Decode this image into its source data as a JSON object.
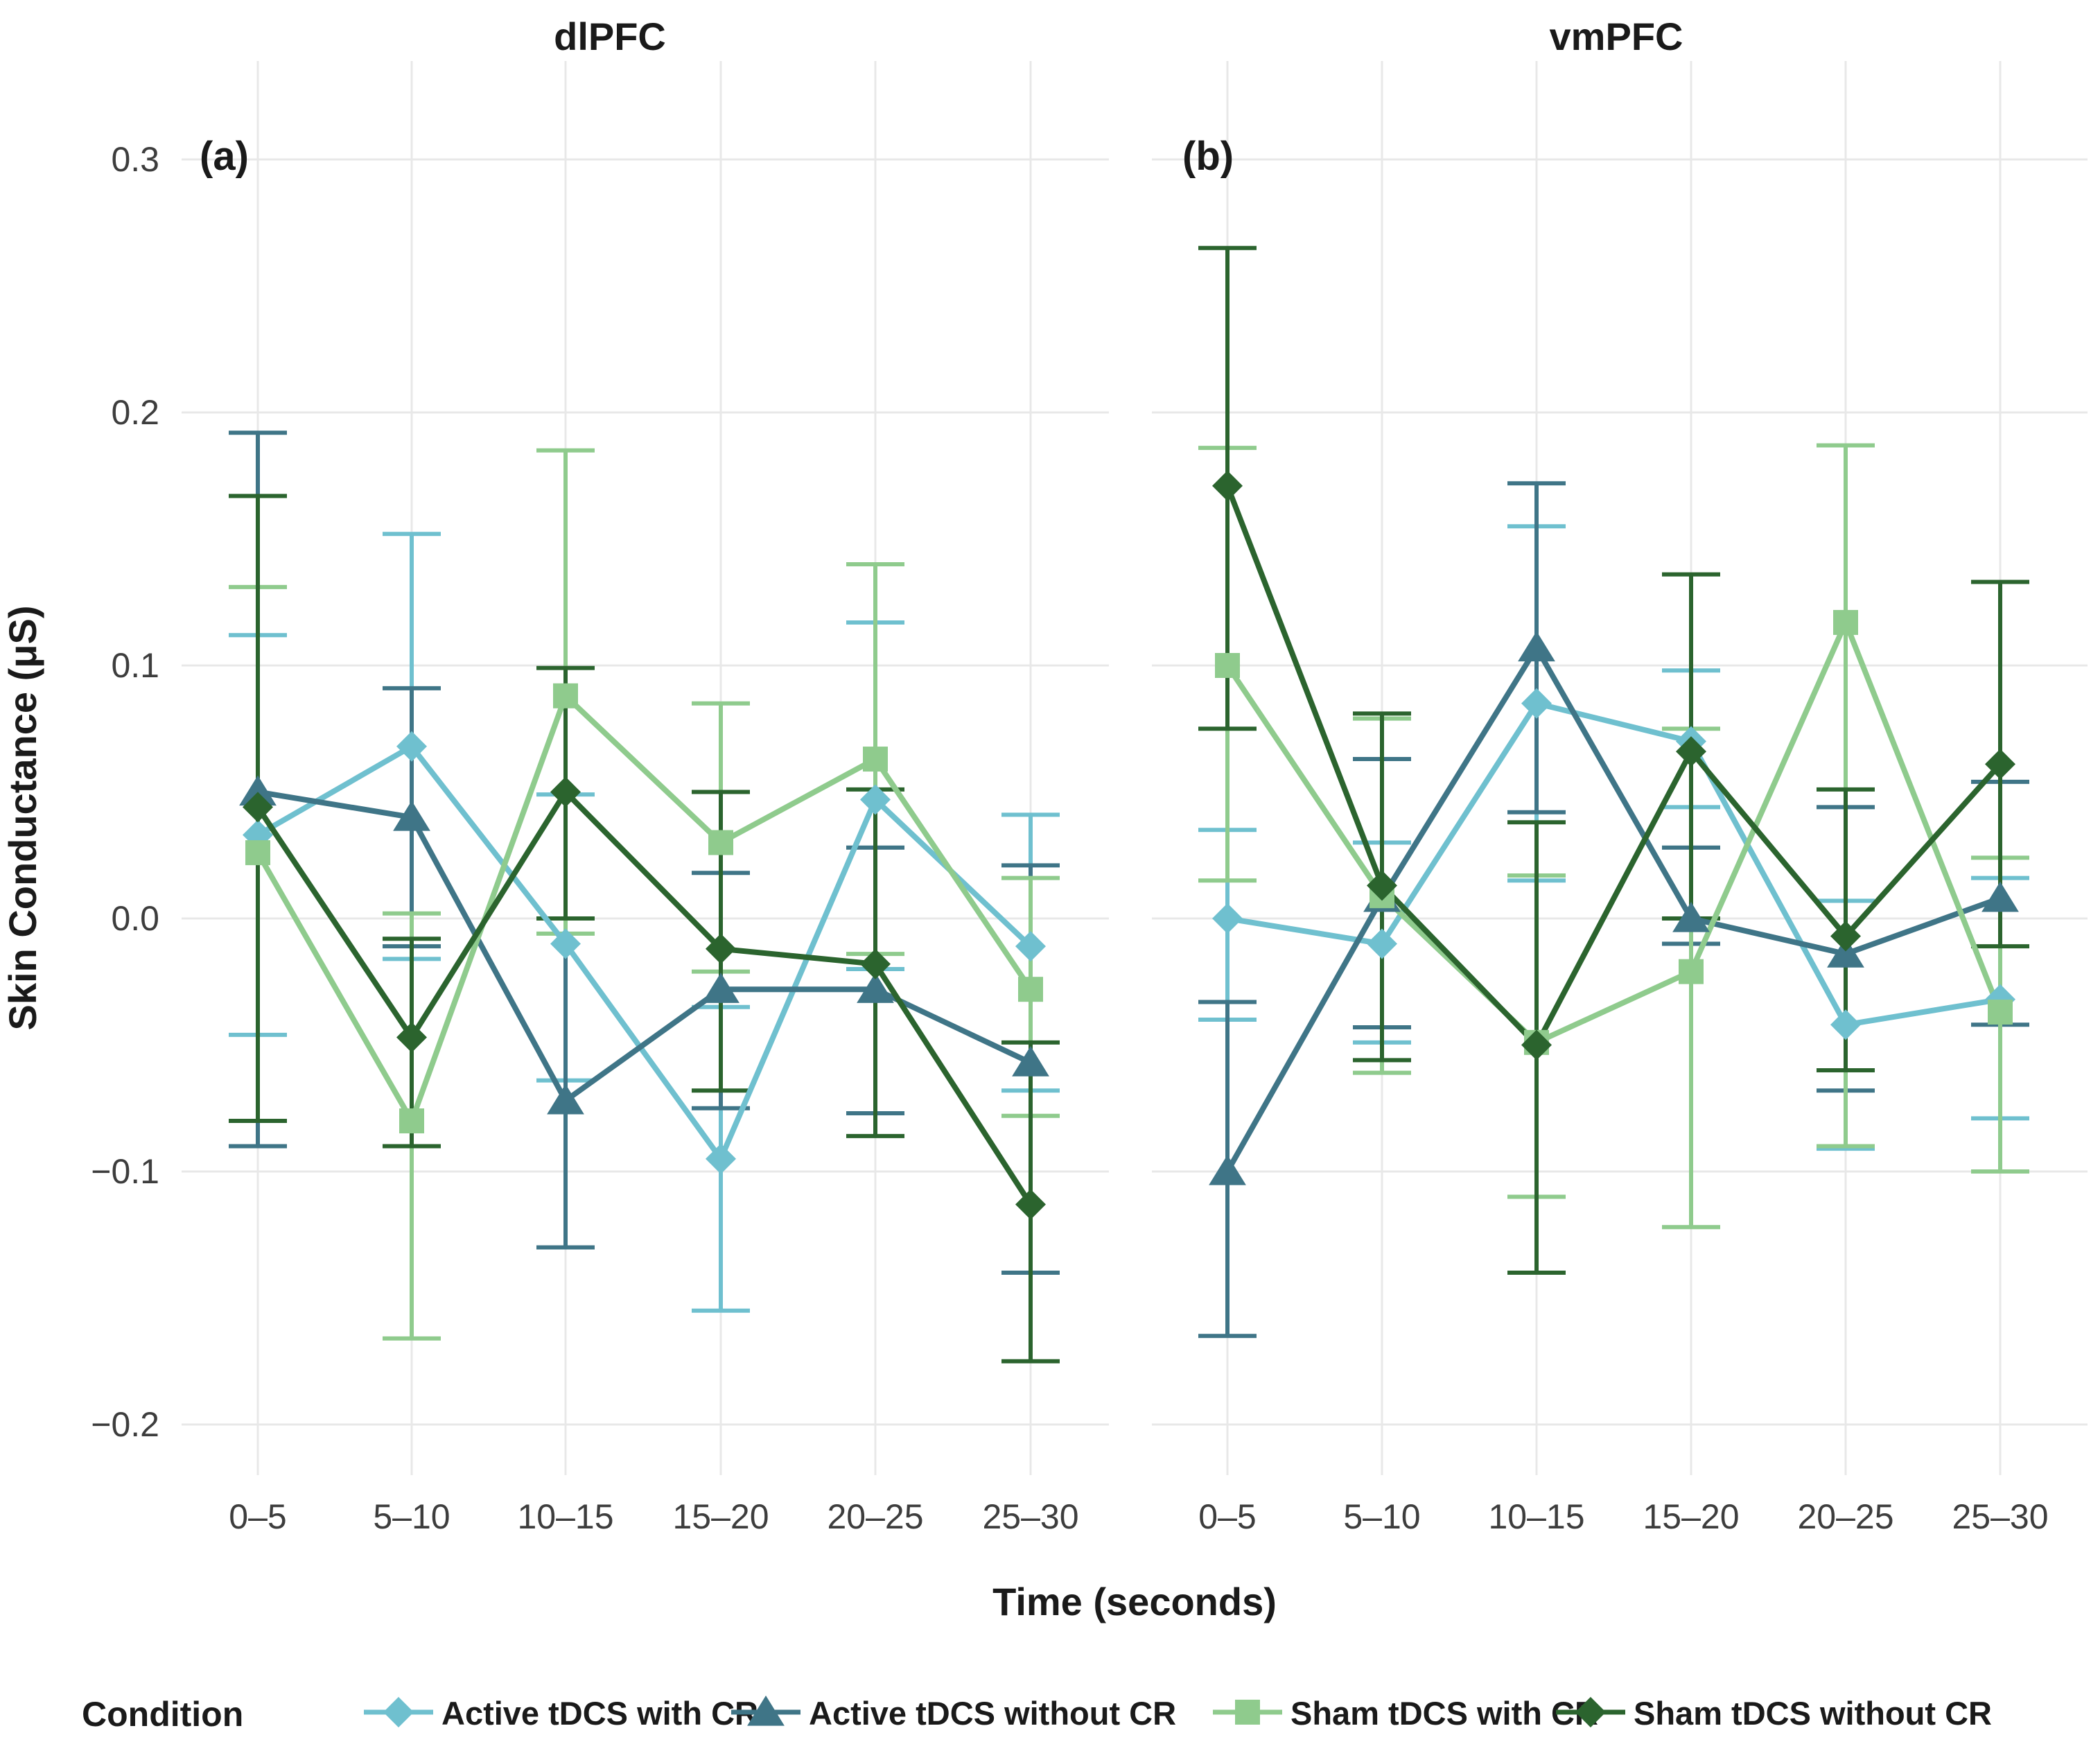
{
  "figure": {
    "background": "#ffffff"
  },
  "colors": {
    "grid": "#e8e8e8",
    "tick_text": "#3d3d3d",
    "title_text": "#1a1a1a"
  },
  "chart_data": {
    "type": "line",
    "categories": [
      "0–5",
      "5–10",
      "10–15",
      "15–20",
      "20–25",
      "25–30"
    ],
    "xlabel": "Time (seconds)",
    "ylabel": "Skin Conductance (μS)",
    "ylim": [
      -0.25,
      0.33
    ],
    "yticks": [
      {
        "value": 0.3,
        "label": "0.3"
      },
      {
        "value": 0.2,
        "label": "0.2"
      },
      {
        "value": 0.1,
        "label": "0.1"
      },
      {
        "value": 0.0,
        "label": "0.0"
      },
      {
        "value": -0.1,
        "label": "−0.1"
      },
      {
        "value": -0.2,
        "label": "−0.2"
      }
    ],
    "grid": true,
    "legend_title": "Condition",
    "legend_position": "bottom",
    "panels": [
      {
        "id": "a",
        "label": "(a)",
        "title": "dlPFC",
        "series": [
          {
            "name": "Active tDCS with CR",
            "color": "#6fc0cf",
            "marker": "diamond",
            "values": [
              0.033,
              0.068,
              -0.01,
              -0.095,
              0.047,
              -0.011
            ],
            "lower": [
              -0.046,
              -0.016,
              -0.064,
              -0.155,
              -0.02,
              -0.068
            ],
            "upper": [
              0.112,
              0.152,
              0.049,
              -0.035,
              0.117,
              0.041
            ]
          },
          {
            "name": "Active tDCS without CR",
            "color": "#3f7587",
            "marker": "triangle",
            "values": [
              0.05,
              0.04,
              -0.072,
              -0.028,
              -0.028,
              -0.057
            ],
            "lower": [
              -0.09,
              -0.011,
              -0.13,
              -0.075,
              -0.077,
              -0.14
            ],
            "upper": [
              0.192,
              0.091,
              0.0,
              0.018,
              0.028,
              0.021
            ]
          },
          {
            "name": "Sham tDCS with CR",
            "color": "#8fcb8d",
            "marker": "square",
            "values": [
              0.026,
              -0.08,
              0.088,
              0.03,
              0.063,
              -0.028
            ],
            "lower": [
              -0.08,
              -0.166,
              -0.006,
              -0.021,
              -0.014,
              -0.078
            ],
            "upper": [
              0.131,
              0.002,
              0.185,
              0.085,
              0.14,
              0.016
            ]
          },
          {
            "name": "Sham tDCS without CR",
            "color": "#2b642e",
            "marker": "diamond",
            "values": [
              0.044,
              -0.047,
              0.05,
              -0.012,
              -0.018,
              -0.113
            ],
            "lower": [
              -0.08,
              -0.09,
              0.0,
              -0.068,
              -0.086,
              -0.175
            ],
            "upper": [
              0.167,
              -0.008,
              0.099,
              0.05,
              0.051,
              -0.049
            ]
          }
        ]
      },
      {
        "id": "b",
        "label": "(b)",
        "title": "vmPFC",
        "series": [
          {
            "name": "Active tDCS with CR",
            "color": "#6fc0cf",
            "marker": "diamond",
            "values": [
              0.0,
              -0.01,
              0.085,
              0.07,
              -0.042,
              -0.032
            ],
            "lower": [
              -0.04,
              -0.049,
              0.015,
              0.044,
              -0.091,
              -0.079
            ],
            "upper": [
              0.035,
              0.03,
              0.155,
              0.098,
              0.007,
              0.016
            ]
          },
          {
            "name": "Active tDCS without CR",
            "color": "#3f7587",
            "marker": "triangle",
            "values": [
              -0.1,
              0.008,
              0.107,
              0.0,
              -0.014,
              0.008
            ],
            "lower": [
              -0.165,
              -0.043,
              0.042,
              -0.01,
              -0.068,
              -0.042
            ],
            "upper": [
              -0.033,
              0.063,
              0.172,
              0.028,
              0.044,
              0.054
            ]
          },
          {
            "name": "Sham tDCS with CR",
            "color": "#8fcb8d",
            "marker": "square",
            "values": [
              0.1,
              0.009,
              -0.049,
              -0.021,
              0.117,
              -0.037
            ],
            "lower": [
              0.015,
              -0.061,
              -0.11,
              -0.122,
              -0.09,
              -0.1
            ],
            "upper": [
              0.186,
              0.079,
              0.017,
              0.075,
              0.187,
              0.024
            ]
          },
          {
            "name": "Sham tDCS without CR",
            "color": "#2b642e",
            "marker": "diamond",
            "values": [
              0.171,
              0.013,
              -0.05,
              0.066,
              -0.007,
              0.061
            ],
            "lower": [
              0.075,
              -0.056,
              -0.14,
              0.0,
              -0.06,
              -0.011
            ],
            "upper": [
              0.265,
              0.081,
              0.038,
              0.136,
              0.051,
              0.133
            ]
          }
        ]
      }
    ]
  }
}
